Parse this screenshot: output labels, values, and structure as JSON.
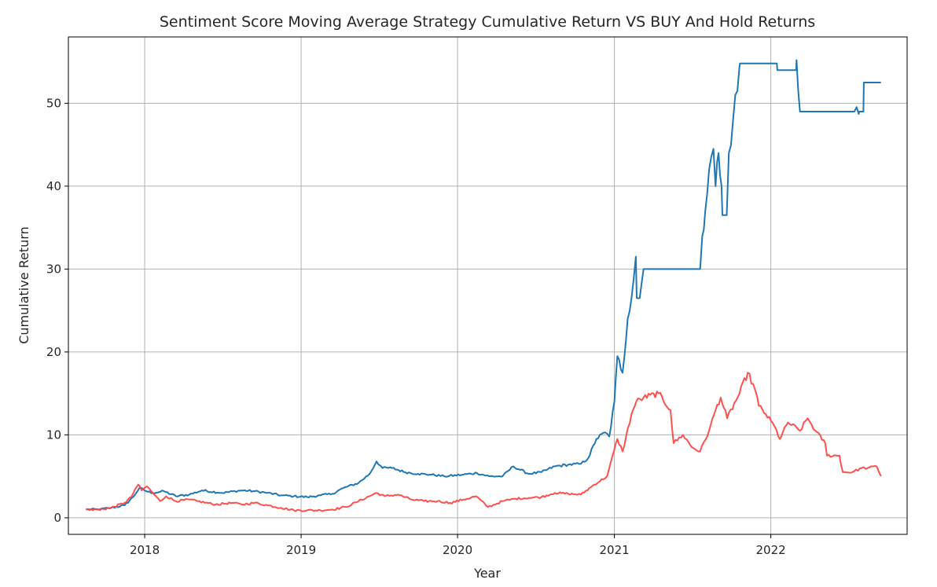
{
  "chart_data": {
    "type": "line",
    "title": "Sentiment Score Moving Average Strategy Cumulative Return VS BUY And Hold Returns",
    "xlabel": "Year",
    "ylabel": "Cumulative Return",
    "x_tick_labels": [
      "2018",
      "2019",
      "2020",
      "2021",
      "2022"
    ],
    "y_tick_labels": [
      "0",
      "10",
      "20",
      "30",
      "40",
      "50"
    ],
    "xlim": [
      "2017-07-07",
      "2022-11-15"
    ],
    "ylim": [
      -2,
      58
    ],
    "grid": true,
    "legend": "none",
    "series": [
      {
        "color": "#1f77b4",
        "x": [
          "2017-08-17",
          "2017-09-15",
          "2017-10-15",
          "2017-11-15",
          "2017-12-05",
          "2017-12-20",
          "2018-01-05",
          "2018-01-20",
          "2018-02-15",
          "2018-03-15",
          "2018-04-15",
          "2018-05-15",
          "2018-07-01",
          "2018-08-15",
          "2018-09-15",
          "2018-10-15",
          "2018-11-15",
          "2018-12-15",
          "2019-01-15",
          "2019-02-15",
          "2019-03-15",
          "2019-04-10",
          "2019-05-15",
          "2019-06-10",
          "2019-06-26",
          "2019-07-10",
          "2019-08-01",
          "2019-09-01",
          "2019-10-01",
          "2019-11-01",
          "2019-12-01",
          "2020-01-15",
          "2020-02-15",
          "2020-03-15",
          "2020-04-15",
          "2020-05-10",
          "2020-06-15",
          "2020-07-15",
          "2020-08-15",
          "2020-09-15",
          "2020-10-15",
          "2020-11-01",
          "2020-11-20",
          "2020-12-10",
          "2020-12-20",
          "2021-01-01",
          "2021-01-08",
          "2021-01-20",
          "2021-02-01",
          "2021-02-10",
          "2021-02-20",
          "2021-02-22",
          "2021-03-01",
          "2021-03-10",
          "2021-03-15",
          "2021-05-01",
          "2021-06-15",
          "2021-07-20",
          "2021-07-25",
          "2021-08-01",
          "2021-08-10",
          "2021-08-20",
          "2021-08-25",
          "2021-09-01",
          "2021-09-08",
          "2021-09-10",
          "2021-09-20",
          "2021-09-25",
          "2021-10-05",
          "2021-10-10",
          "2021-10-15",
          "2021-10-20",
          "2021-10-21",
          "2021-11-15",
          "2021-12-15",
          "2022-01-15",
          "2022-01-16",
          "2022-02-10",
          "2022-03-01",
          "2022-03-02",
          "2022-03-10",
          "2022-04-15",
          "2022-05-15",
          "2022-06-15",
          "2022-07-15",
          "2022-07-25",
          "2022-07-26",
          "2022-08-05",
          "2022-08-06",
          "2022-09-01",
          "2022-09-15"
        ],
        "values": [
          1.0,
          1.0,
          1.2,
          1.5,
          2.5,
          3.6,
          3.2,
          3.0,
          3.2,
          2.6,
          2.8,
          3.3,
          3.0,
          3.3,
          3.2,
          3.0,
          2.7,
          2.6,
          2.5,
          2.7,
          2.9,
          3.6,
          4.2,
          5.3,
          6.8,
          6.0,
          6.0,
          5.5,
          5.3,
          5.2,
          5.0,
          5.2,
          5.4,
          5.0,
          5.0,
          6.2,
          5.3,
          5.5,
          6.2,
          6.4,
          6.5,
          7.2,
          9.5,
          10.3,
          9.8,
          14.0,
          19.5,
          17.5,
          24.0,
          26.5,
          31.5,
          26.5,
          26.5,
          30.0,
          30.0,
          30.0,
          30.0,
          30.0,
          34.0,
          37.0,
          42.0,
          44.5,
          40.0,
          44.0,
          40.0,
          36.5,
          36.5,
          44.0,
          48.0,
          51.0,
          51.5,
          54.5,
          54.8,
          54.8,
          54.8,
          54.8,
          54.0,
          54.0,
          54.0,
          55.2,
          49.0,
          49.0,
          49.0,
          49.0,
          49.0,
          48.7,
          49.0,
          49.0,
          52.5,
          52.5,
          52.5
        ]
      },
      {
        "color": "#ff4747",
        "x": [
          "2017-08-17",
          "2017-09-15",
          "2017-10-15",
          "2017-11-15",
          "2017-12-01",
          "2017-12-10",
          "2017-12-17",
          "2017-12-25",
          "2018-01-06",
          "2018-01-20",
          "2018-02-06",
          "2018-02-20",
          "2018-03-15",
          "2018-04-15",
          "2018-05-05",
          "2018-06-15",
          "2018-07-25",
          "2018-08-15",
          "2018-09-15",
          "2018-10-15",
          "2018-11-15",
          "2018-12-15",
          "2019-01-15",
          "2019-02-15",
          "2019-03-15",
          "2019-04-15",
          "2019-05-15",
          "2019-06-26",
          "2019-07-15",
          "2019-08-15",
          "2019-09-15",
          "2019-10-15",
          "2019-11-15",
          "2019-12-15",
          "2020-01-15",
          "2020-02-13",
          "2020-03-12",
          "2020-04-15",
          "2020-05-15",
          "2020-06-15",
          "2020-07-15",
          "2020-08-15",
          "2020-09-15",
          "2020-10-15",
          "2020-11-15",
          "2020-12-15",
          "2021-01-08",
          "2021-01-20",
          "2021-02-10",
          "2021-02-21",
          "2021-03-10",
          "2021-04-14",
          "2021-05-12",
          "2021-05-19",
          "2021-06-10",
          "2021-07-01",
          "2021-07-20",
          "2021-08-10",
          "2021-08-25",
          "2021-09-06",
          "2021-09-21",
          "2021-10-20",
          "2021-11-08",
          "2021-11-25",
          "2021-12-04",
          "2021-12-20",
          "2022-01-10",
          "2022-01-22",
          "2022-02-10",
          "2022-03-10",
          "2022-03-28",
          "2022-04-15",
          "2022-05-08",
          "2022-05-12",
          "2022-06-10",
          "2022-06-18",
          "2022-07-10",
          "2022-08-01",
          "2022-08-15",
          "2022-09-05",
          "2022-09-15"
        ],
        "values": [
          1.0,
          1.0,
          1.2,
          1.8,
          2.5,
          3.5,
          4.0,
          3.3,
          3.8,
          3.0,
          2.0,
          2.6,
          2.0,
          2.2,
          2.0,
          1.6,
          1.8,
          1.6,
          1.8,
          1.5,
          1.2,
          0.9,
          0.9,
          0.9,
          1.0,
          1.3,
          2.0,
          3.0,
          2.6,
          2.8,
          2.2,
          2.0,
          2.0,
          1.8,
          2.2,
          2.6,
          1.3,
          2.0,
          2.3,
          2.4,
          2.5,
          3.0,
          2.9,
          2.8,
          4.0,
          5.0,
          9.5,
          8.0,
          12.5,
          14.0,
          14.5,
          15.0,
          13.0,
          9.0,
          10.0,
          8.5,
          8.0,
          10.5,
          13.0,
          14.5,
          12.0,
          15.0,
          17.5,
          15.5,
          13.5,
          12.5,
          11.0,
          9.5,
          11.5,
          10.5,
          12.0,
          10.5,
          9.0,
          7.5,
          7.5,
          5.5,
          5.5,
          6.0,
          6.0,
          6.2,
          5.0
        ]
      }
    ]
  }
}
